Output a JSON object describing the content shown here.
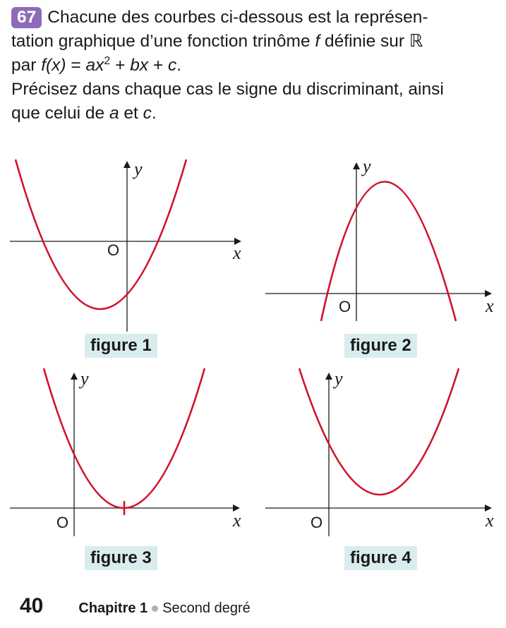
{
  "exercise": {
    "number": "67",
    "line1": "Chacune des courbes ci-dessous est la représen-",
    "line2_pre": "tation graphique d’une fonction trinôme ",
    "f": "f",
    "line2_post": " définie sur ℝ",
    "line3_pre": "par ",
    "fx": "f(x)",
    "eq": " = ",
    "ax": "ax",
    "sup2": "2",
    "plus1": " + ",
    "bx": "bx",
    "plus2": " + ",
    "c": "c",
    "period": ".",
    "line4": "Précisez dans chaque cas le signe du discriminant, ainsi",
    "line5_pre": "que celui de ",
    "a": "a",
    "et": " et ",
    "c2": "c",
    "period2": "."
  },
  "figures": [
    {
      "caption": "figure 1",
      "x_label": "x",
      "y_label": "y",
      "origin_label": "O"
    },
    {
      "caption": "figure 2",
      "x_label": "x",
      "y_label": "y",
      "origin_label": "O"
    },
    {
      "caption": "figure 3",
      "x_label": "x",
      "y_label": "y",
      "origin_label": "O"
    },
    {
      "caption": "figure 4",
      "x_label": "x",
      "y_label": "y",
      "origin_label": "O"
    }
  ],
  "footer": {
    "page_number": "40",
    "chapter": "Chapitre 1",
    "title": "Second degré"
  },
  "colors": {
    "curve": "#d0132b",
    "badge": "#8e6bb8",
    "caption_bg": "#d9ecee"
  }
}
